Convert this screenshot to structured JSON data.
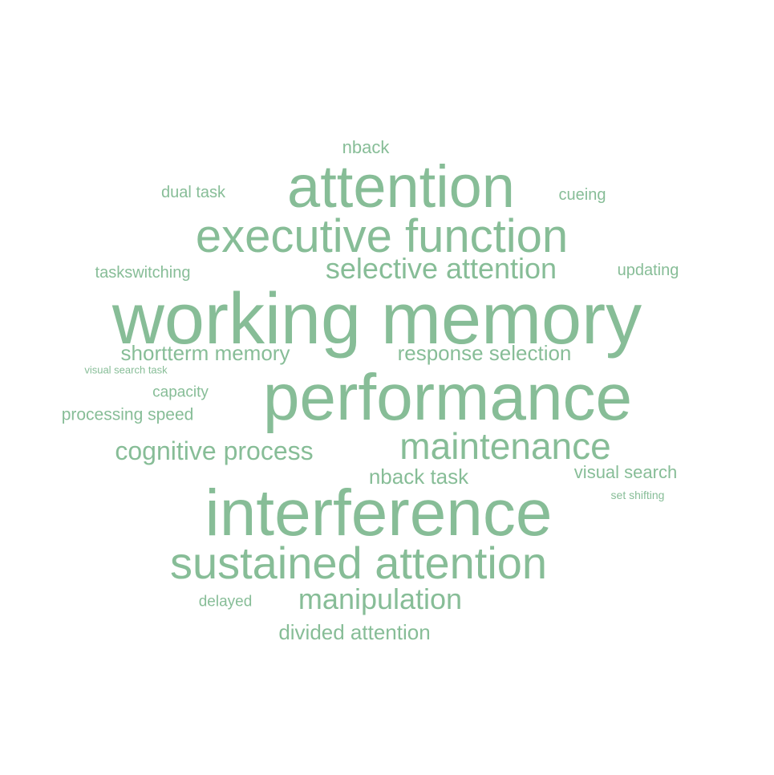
{
  "cloud": {
    "color": "#7DB88F",
    "words": [
      {
        "text": "working memory"
      },
      {
        "text": "performance"
      },
      {
        "text": "interference"
      },
      {
        "text": "attention"
      },
      {
        "text": "executive function"
      },
      {
        "text": "sustained attention"
      },
      {
        "text": "maintenance"
      },
      {
        "text": "selective attention"
      },
      {
        "text": "manipulation"
      },
      {
        "text": "cognitive process"
      },
      {
        "text": "response selection"
      },
      {
        "text": "shortterm memory"
      },
      {
        "text": "nback task"
      },
      {
        "text": "divided attention"
      },
      {
        "text": "visual search"
      },
      {
        "text": "nback"
      },
      {
        "text": "dual task"
      },
      {
        "text": "cueing"
      },
      {
        "text": "taskswitching"
      },
      {
        "text": "updating"
      },
      {
        "text": "capacity"
      },
      {
        "text": "processing speed"
      },
      {
        "text": "delayed"
      },
      {
        "text": "visual search task"
      },
      {
        "text": "set shifting"
      }
    ]
  }
}
